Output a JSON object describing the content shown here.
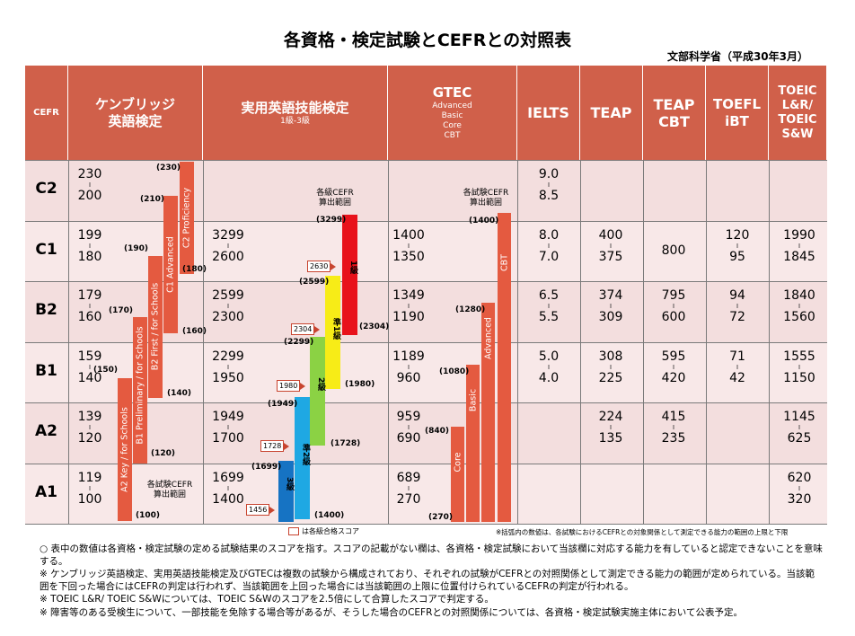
{
  "title": "各資格・検定試験とCEFRとの対照表",
  "source": "文部科学省（平成30年3月）",
  "headers": {
    "cefr": "CEFR",
    "cambridge": [
      "ケンブリッジ",
      "英語検定"
    ],
    "eiken": "実用英語技能検定",
    "eiken_sub": "1級-3級",
    "gtec": "GTEC",
    "gtec_sub": [
      "Advanced",
      "Basic",
      "Core",
      "CBT"
    ],
    "ielts": "IELTS",
    "teap": "TEAP",
    "teap_cbt": [
      "TEAP",
      "CBT"
    ],
    "toefl": [
      "TOEFL",
      "iBT"
    ],
    "toeic": [
      "TOEIC",
      "L&R/",
      "TOEIC",
      "S&W"
    ]
  },
  "levels": [
    "C2",
    "C1",
    "B2",
    "B1",
    "A2",
    "A1"
  ],
  "cambridge": [
    [
      "230",
      "200"
    ],
    [
      "199",
      "180"
    ],
    [
      "179",
      "160"
    ],
    [
      "159",
      "140"
    ],
    [
      "139",
      "120"
    ],
    [
      "119",
      "100"
    ]
  ],
  "cambridge_labels": [
    "(230)",
    "(210)",
    "(180)",
    "(190)",
    "(160)",
    "(170)",
    "(140)",
    "(150)",
    "(120)",
    "(100)"
  ],
  "cambridge_bars": [
    "C2 Proficiency",
    "C1 Advanced",
    "B2 First / for Schools",
    "B1 Preliminary / for Schools",
    "A2 Key / for Schools"
  ],
  "cambridge_note": [
    "各試験CEFR",
    "算出範囲"
  ],
  "eiken": [
    [
      "",
      ""
    ],
    [
      "3299",
      "2600"
    ],
    [
      "2599",
      "2300"
    ],
    [
      "2299",
      "1950"
    ],
    [
      "1949",
      "1700"
    ],
    [
      "1699",
      "1400"
    ]
  ],
  "eiken_labels": [
    "(3299)",
    "(2599)",
    "(2304)",
    "(2299)",
    "(1980)",
    "(1949)",
    "(1728)",
    "(1699)",
    "(1400)"
  ],
  "eiken_tags": [
    "2630",
    "2304",
    "1980",
    "1728",
    "1456"
  ],
  "eiken_grades": [
    "1級",
    "準1級",
    "2級",
    "準2級",
    "3級"
  ],
  "eiken_note": [
    "各級CEFR",
    "算出範囲"
  ],
  "gtec": [
    [
      "",
      ""
    ],
    [
      "1400",
      "1350"
    ],
    [
      "1349",
      "1190"
    ],
    [
      "1189",
      "960"
    ],
    [
      "959",
      "690"
    ],
    [
      "689",
      "270"
    ]
  ],
  "gtec_labels": [
    "(1400)",
    "(1280)",
    "(1080)",
    "(840)",
    "(270)"
  ],
  "gtec_bars": [
    "CBT",
    "Advanced",
    "Basic",
    "Core"
  ],
  "gtec_note": [
    "各試験CEFR",
    "算出範囲"
  ],
  "ielts": [
    [
      "9.0",
      "8.5"
    ],
    [
      "8.0",
      "7.0"
    ],
    [
      "6.5",
      "5.5"
    ],
    [
      "5.0",
      "4.0"
    ],
    [
      "",
      ""
    ],
    [
      "",
      ""
    ]
  ],
  "teap": [
    [
      "",
      ""
    ],
    [
      "400",
      "375"
    ],
    [
      "374",
      "309"
    ],
    [
      "308",
      "225"
    ],
    [
      "224",
      "135"
    ],
    [
      "",
      ""
    ]
  ],
  "teap_cbt": [
    [
      "",
      ""
    ],
    [
      "800",
      ""
    ],
    [
      "795",
      "600"
    ],
    [
      "595",
      "420"
    ],
    [
      "415",
      "235"
    ],
    [
      "",
      ""
    ]
  ],
  "toefl": [
    [
      "",
      ""
    ],
    [
      "120",
      "95"
    ],
    [
      "94",
      "72"
    ],
    [
      "71",
      "42"
    ],
    [
      "",
      ""
    ],
    [
      "",
      ""
    ]
  ],
  "toeic": [
    [
      "",
      ""
    ],
    [
      "1990",
      "1845"
    ],
    [
      "1840",
      "1560"
    ],
    [
      "1555",
      "1150"
    ],
    [
      "1145",
      "625"
    ],
    [
      "620",
      "320"
    ]
  ],
  "legend_pass": "は各級合格スコア",
  "legend_note": "※括弧内の数値は、各試験におけるCEFRとの対象関係として測定できる能力の範囲の上限と下限",
  "notes": [
    "○ 表中の数値は各資格・検定試験の定める試験結果のスコアを指す。スコアの記載がない欄は、各資格・検定試験において当該欄に対応する能力を有していると認定できないことを意味する。",
    "※ ケンブリッジ英語検定、実用英語技能検定及びGTECは複数の試験から構成されており、それぞれの試験がCEFRとの対照関係として測定できる能力の範囲が定められている。当該範囲を下回った場合にはCEFRの判定は行われず、当該範囲を上回った場合には当該範囲の上限に位置付けられているCEFRの判定が行われる。",
    "※ TOEIC L&R/ TOEIC S&Wについては、TOEIC S&Wのスコアを2.5倍にして合算したスコアで判定する。",
    "※ 障害等のある受検生について、一部技能を免除する場合等があるが、そうした場合のCEFRとの対照関係については、各資格・検定試験実施主体において公表予定。"
  ],
  "colors": {
    "header": "#d0604a",
    "row_a": "#f1dada",
    "row_b": "#ffffff",
    "bar": "#e45a40",
    "eiken1": "#e8121b",
    "eiken_pre1": "#f7ec17",
    "eiken2": "#8bd244",
    "eiken_pre2": "#1fa8e3",
    "eiken3": "#1673c3"
  }
}
